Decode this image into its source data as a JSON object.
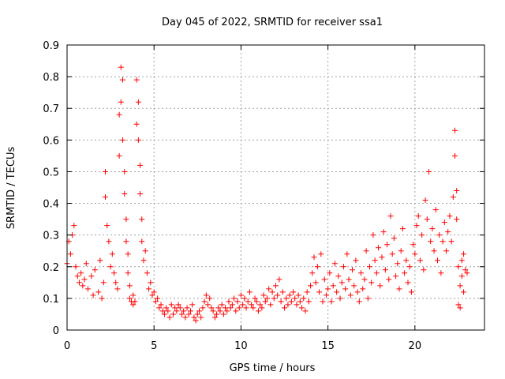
{
  "chart_data": {
    "type": "scatter",
    "title": "Day 045 of 2022, SRMTID for receiver ssa1",
    "xlabel": "GPS time / hours",
    "ylabel": "SRMTID / TECUs",
    "xlim": [
      0,
      24
    ],
    "ylim": [
      0,
      0.9
    ],
    "grid": true,
    "marker": "+",
    "color": "#ff0000",
    "x_ticks": [
      0,
      5,
      10,
      15,
      20
    ],
    "x_tick_labels": [
      "0",
      "5",
      "10",
      "15",
      "20"
    ],
    "y_ticks": [
      0,
      0.1,
      0.2,
      0.3,
      0.4,
      0.5,
      0.6,
      0.7,
      0.8,
      0.9
    ],
    "y_tick_labels": [
      "0",
      "0.1",
      "0.2",
      "0.3",
      "0.4",
      "0.5",
      "0.6",
      "0.7",
      "0.8",
      "0.9"
    ],
    "series": [
      {
        "name": "ssa1",
        "points": [
          [
            0.0,
            0.21
          ],
          [
            0.1,
            0.28
          ],
          [
            0.2,
            0.24
          ],
          [
            0.3,
            0.3
          ],
          [
            0.4,
            0.33
          ],
          [
            0.5,
            0.2
          ],
          [
            0.6,
            0.17
          ],
          [
            0.7,
            0.15
          ],
          [
            0.8,
            0.18
          ],
          [
            0.9,
            0.14
          ],
          [
            1.0,
            0.16
          ],
          [
            1.1,
            0.21
          ],
          [
            1.2,
            0.13
          ],
          [
            1.4,
            0.17
          ],
          [
            1.5,
            0.11
          ],
          [
            1.6,
            0.19
          ],
          [
            1.8,
            0.12
          ],
          [
            1.9,
            0.22
          ],
          [
            2.0,
            0.1
          ],
          [
            2.1,
            0.15
          ],
          [
            2.2,
            0.5
          ],
          [
            2.2,
            0.42
          ],
          [
            2.3,
            0.33
          ],
          [
            2.4,
            0.28
          ],
          [
            2.5,
            0.2
          ],
          [
            2.6,
            0.24
          ],
          [
            2.7,
            0.18
          ],
          [
            2.8,
            0.15
          ],
          [
            2.9,
            0.13
          ],
          [
            3.0,
            0.55
          ],
          [
            3.0,
            0.68
          ],
          [
            3.1,
            0.72
          ],
          [
            3.1,
            0.83
          ],
          [
            3.2,
            0.79
          ],
          [
            3.2,
            0.6
          ],
          [
            3.3,
            0.5
          ],
          [
            3.3,
            0.43
          ],
          [
            3.4,
            0.35
          ],
          [
            3.4,
            0.28
          ],
          [
            3.5,
            0.24
          ],
          [
            3.5,
            0.18
          ],
          [
            3.6,
            0.14
          ],
          [
            3.6,
            0.1
          ],
          [
            3.7,
            0.09
          ],
          [
            3.8,
            0.08
          ],
          [
            3.8,
            0.11
          ],
          [
            3.9,
            0.09
          ],
          [
            4.0,
            0.79
          ],
          [
            4.0,
            0.65
          ],
          [
            4.1,
            0.72
          ],
          [
            4.1,
            0.6
          ],
          [
            4.2,
            0.52
          ],
          [
            4.2,
            0.43
          ],
          [
            4.3,
            0.35
          ],
          [
            4.3,
            0.28
          ],
          [
            4.4,
            0.22
          ],
          [
            4.5,
            0.25
          ],
          [
            4.6,
            0.18
          ],
          [
            4.7,
            0.13
          ],
          [
            4.8,
            0.15
          ],
          [
            4.9,
            0.11
          ],
          [
            5.0,
            0.12
          ],
          [
            5.1,
            0.09
          ],
          [
            5.2,
            0.1
          ],
          [
            5.3,
            0.07
          ],
          [
            5.4,
            0.08
          ],
          [
            5.5,
            0.06
          ],
          [
            5.6,
            0.05
          ],
          [
            5.7,
            0.07
          ],
          [
            5.8,
            0.06
          ],
          [
            5.9,
            0.04
          ],
          [
            6.0,
            0.08
          ],
          [
            6.1,
            0.05
          ],
          [
            6.2,
            0.07
          ],
          [
            6.3,
            0.06
          ],
          [
            6.4,
            0.08
          ],
          [
            6.5,
            0.07
          ],
          [
            6.6,
            0.05
          ],
          [
            6.7,
            0.06
          ],
          [
            6.8,
            0.04
          ],
          [
            6.9,
            0.07
          ],
          [
            7.0,
            0.05
          ],
          [
            7.1,
            0.06
          ],
          [
            7.2,
            0.08
          ],
          [
            7.3,
            0.04
          ],
          [
            7.4,
            0.03
          ],
          [
            7.5,
            0.05
          ],
          [
            7.6,
            0.06
          ],
          [
            7.7,
            0.04
          ],
          [
            7.8,
            0.07
          ],
          [
            7.9,
            0.09
          ],
          [
            8.0,
            0.11
          ],
          [
            8.1,
            0.08
          ],
          [
            8.2,
            0.1
          ],
          [
            8.3,
            0.07
          ],
          [
            8.4,
            0.06
          ],
          [
            8.5,
            0.04
          ],
          [
            8.6,
            0.05
          ],
          [
            8.7,
            0.07
          ],
          [
            8.8,
            0.06
          ],
          [
            8.9,
            0.08
          ],
          [
            9.0,
            0.05
          ],
          [
            9.1,
            0.07
          ],
          [
            9.2,
            0.06
          ],
          [
            9.3,
            0.09
          ],
          [
            9.4,
            0.07
          ],
          [
            9.5,
            0.08
          ],
          [
            9.6,
            0.1
          ],
          [
            9.7,
            0.06
          ],
          [
            9.8,
            0.09
          ],
          [
            9.9,
            0.07
          ],
          [
            10.0,
            0.11
          ],
          [
            10.1,
            0.08
          ],
          [
            10.2,
            0.1
          ],
          [
            10.3,
            0.07
          ],
          [
            10.4,
            0.09
          ],
          [
            10.5,
            0.12
          ],
          [
            10.6,
            0.08
          ],
          [
            10.7,
            0.07
          ],
          [
            10.8,
            0.1
          ],
          [
            10.9,
            0.09
          ],
          [
            11.0,
            0.06
          ],
          [
            11.1,
            0.08
          ],
          [
            11.2,
            0.07
          ],
          [
            11.3,
            0.11
          ],
          [
            11.4,
            0.09
          ],
          [
            11.5,
            0.1
          ],
          [
            11.6,
            0.13
          ],
          [
            11.7,
            0.08
          ],
          [
            11.8,
            0.12
          ],
          [
            11.9,
            0.1
          ],
          [
            12.0,
            0.14
          ],
          [
            12.1,
            0.11
          ],
          [
            12.2,
            0.16
          ],
          [
            12.3,
            0.09
          ],
          [
            12.4,
            0.12
          ],
          [
            12.5,
            0.07
          ],
          [
            12.6,
            0.1
          ],
          [
            12.7,
            0.08
          ],
          [
            12.8,
            0.11
          ],
          [
            12.9,
            0.09
          ],
          [
            13.0,
            0.12
          ],
          [
            13.1,
            0.1
          ],
          [
            13.2,
            0.08
          ],
          [
            13.3,
            0.11
          ],
          [
            13.4,
            0.09
          ],
          [
            13.5,
            0.07
          ],
          [
            13.6,
            0.1
          ],
          [
            13.7,
            0.06
          ],
          [
            13.8,
            0.12
          ],
          [
            13.9,
            0.09
          ],
          [
            14.0,
            0.14
          ],
          [
            14.1,
            0.18
          ],
          [
            14.2,
            0.23
          ],
          [
            14.3,
            0.15
          ],
          [
            14.4,
            0.2
          ],
          [
            14.5,
            0.12
          ],
          [
            14.6,
            0.24
          ],
          [
            14.7,
            0.09
          ],
          [
            14.8,
            0.16
          ],
          [
            14.9,
            0.11
          ],
          [
            15.0,
            0.13
          ],
          [
            15.1,
            0.18
          ],
          [
            15.2,
            0.09
          ],
          [
            15.3,
            0.14
          ],
          [
            15.4,
            0.21
          ],
          [
            15.5,
            0.12
          ],
          [
            15.6,
            0.17
          ],
          [
            15.7,
            0.1
          ],
          [
            15.8,
            0.15
          ],
          [
            15.9,
            0.2
          ],
          [
            16.0,
            0.13
          ],
          [
            16.1,
            0.24
          ],
          [
            16.2,
            0.16
          ],
          [
            16.3,
            0.11
          ],
          [
            16.4,
            0.19
          ],
          [
            16.5,
            0.14
          ],
          [
            16.6,
            0.22
          ],
          [
            16.7,
            0.12
          ],
          [
            16.8,
            0.09
          ],
          [
            16.9,
            0.18
          ],
          [
            17.0,
            0.13
          ],
          [
            17.1,
            0.16
          ],
          [
            17.2,
            0.25
          ],
          [
            17.3,
            0.1
          ],
          [
            17.4,
            0.2
          ],
          [
            17.5,
            0.15
          ],
          [
            17.6,
            0.3
          ],
          [
            17.7,
            0.22
          ],
          [
            17.8,
            0.18
          ],
          [
            17.9,
            0.26
          ],
          [
            18.0,
            0.14
          ],
          [
            18.1,
            0.23
          ],
          [
            18.2,
            0.31
          ],
          [
            18.3,
            0.19
          ],
          [
            18.4,
            0.27
          ],
          [
            18.5,
            0.16
          ],
          [
            18.6,
            0.36
          ],
          [
            18.7,
            0.24
          ],
          [
            18.8,
            0.29
          ],
          [
            18.9,
            0.17
          ],
          [
            19.0,
            0.21
          ],
          [
            19.1,
            0.13
          ],
          [
            19.2,
            0.25
          ],
          [
            19.3,
            0.32
          ],
          [
            19.4,
            0.18
          ],
          [
            19.5,
            0.22
          ],
          [
            19.6,
            0.15
          ],
          [
            19.7,
            0.2
          ],
          [
            19.8,
            0.12
          ],
          [
            19.9,
            0.27
          ],
          [
            20.0,
            0.24
          ],
          [
            20.1,
            0.33
          ],
          [
            20.2,
            0.36
          ],
          [
            20.3,
            0.22
          ],
          [
            20.4,
            0.3
          ],
          [
            20.5,
            0.19
          ],
          [
            20.6,
            0.41
          ],
          [
            20.7,
            0.35
          ],
          [
            20.8,
            0.5
          ],
          [
            20.9,
            0.28
          ],
          [
            21.0,
            0.32
          ],
          [
            21.1,
            0.25
          ],
          [
            21.2,
            0.38
          ],
          [
            21.3,
            0.22
          ],
          [
            21.4,
            0.3
          ],
          [
            21.5,
            0.18
          ],
          [
            21.6,
            0.28
          ],
          [
            21.7,
            0.34
          ],
          [
            21.8,
            0.25
          ],
          [
            21.9,
            0.31
          ],
          [
            22.0,
            0.36
          ],
          [
            22.1,
            0.28
          ],
          [
            22.2,
            0.42
          ],
          [
            22.3,
            0.55
          ],
          [
            22.3,
            0.63
          ],
          [
            22.4,
            0.44
          ],
          [
            22.4,
            0.35
          ],
          [
            22.5,
            0.2
          ],
          [
            22.5,
            0.08
          ],
          [
            22.6,
            0.07
          ],
          [
            22.6,
            0.14
          ],
          [
            22.7,
            0.22
          ],
          [
            22.7,
            0.17
          ],
          [
            22.8,
            0.24
          ],
          [
            22.8,
            0.12
          ],
          [
            22.9,
            0.19
          ],
          [
            23.0,
            0.18
          ]
        ]
      }
    ]
  }
}
